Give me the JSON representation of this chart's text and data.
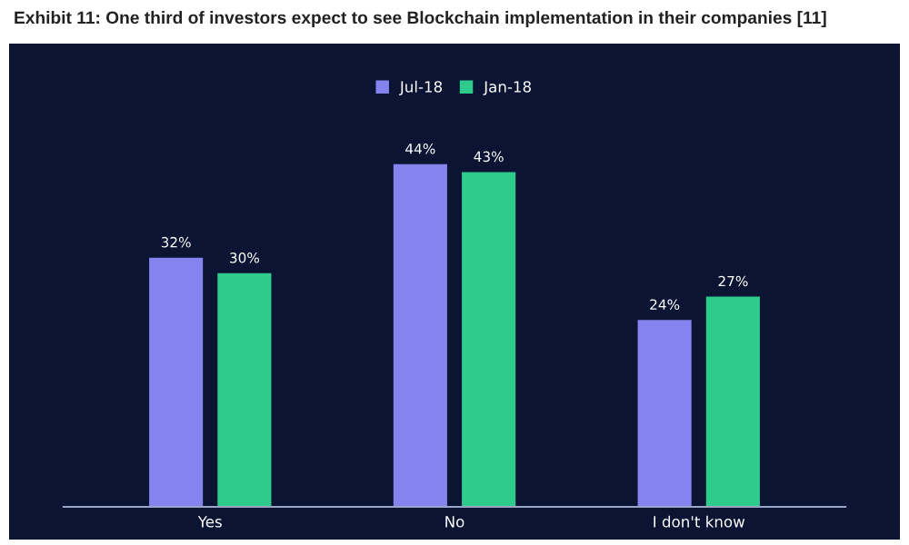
{
  "chart_data": {
    "type": "bar",
    "title": "Exhibit 11: One third of investors expect to see Blockchain implementation in their companies [11]",
    "categories": [
      "Yes",
      "No",
      "I don't know"
    ],
    "series": [
      {
        "name": "Jul-18",
        "color": "#8583ee",
        "values": [
          32,
          44,
          24
        ],
        "value_labels": [
          "32%",
          "44%",
          "24%"
        ]
      },
      {
        "name": "Jan-18",
        "color": "#2fcb8c",
        "values": [
          30,
          43,
          27
        ],
        "value_labels": [
          "30%",
          "43%",
          "27%"
        ]
      }
    ],
    "legend": "top",
    "grid": false
  }
}
